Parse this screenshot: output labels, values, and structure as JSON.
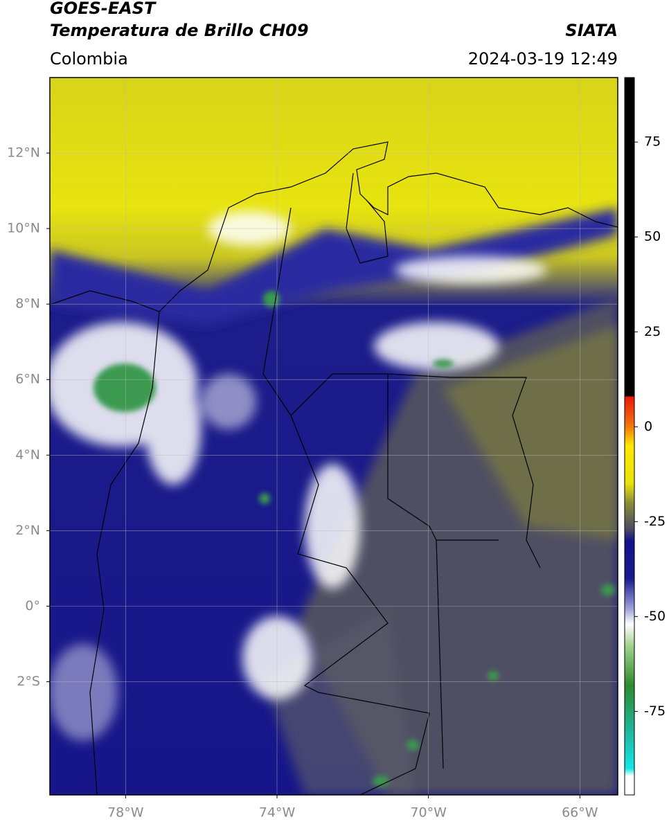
{
  "header": {
    "title": "GOES-EAST",
    "subtitle": "Temperatura de Brillo CH09",
    "region": "Colombia",
    "source": "SIATA",
    "datetime": "2024-03-19 12:49"
  },
  "map": {
    "xlim": [
      -80,
      -65
    ],
    "ylim": [
      -5,
      14
    ],
    "grid": true,
    "xticks": [
      {
        "value": -78,
        "label": "78°W"
      },
      {
        "value": -74,
        "label": "74°W"
      },
      {
        "value": -70,
        "label": "70°W"
      },
      {
        "value": -66,
        "label": "66°W"
      }
    ],
    "yticks": [
      {
        "value": 12,
        "label": "12°N"
      },
      {
        "value": 10,
        "label": "10°N"
      },
      {
        "value": 8,
        "label": "8°N"
      },
      {
        "value": 6,
        "label": "6°N"
      },
      {
        "value": 4,
        "label": "4°N"
      },
      {
        "value": 2,
        "label": "2°N"
      },
      {
        "value": 0,
        "label": "0°"
      },
      {
        "value": -2,
        "label": "2°S"
      }
    ]
  },
  "colorbar": {
    "lim": [
      -97,
      92
    ],
    "ticks": [
      75,
      50,
      25,
      0,
      -25,
      -50,
      -75
    ]
  }
}
